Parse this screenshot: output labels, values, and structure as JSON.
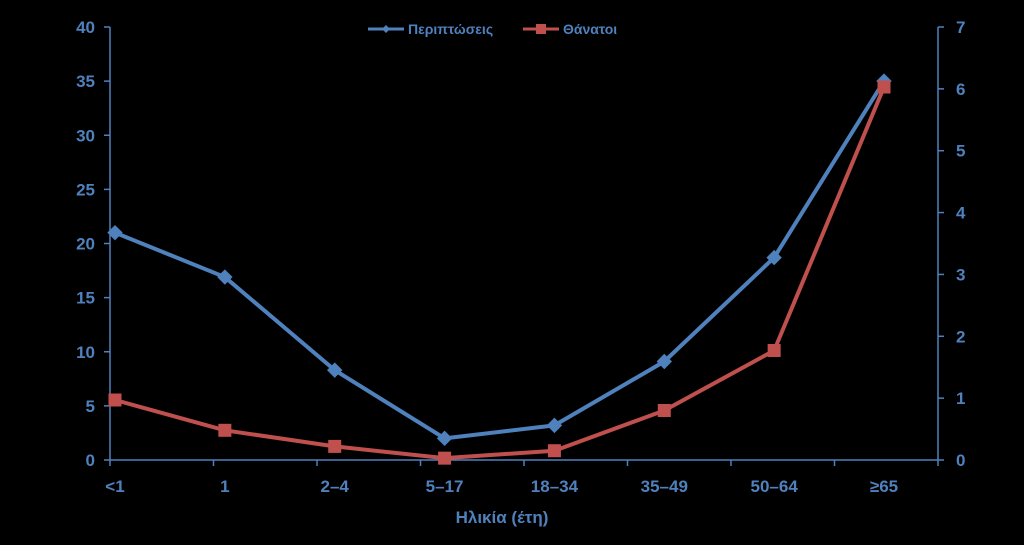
{
  "chart_data": {
    "type": "line",
    "title": "",
    "xlabel": "Ηλικία (έτη)",
    "ylabel": "",
    "y2label": "",
    "categories": [
      "<1",
      "1",
      "2–4",
      "5–17",
      "18–34",
      "35–49",
      "50–64",
      "≥65"
    ],
    "ylim": [
      0,
      40
    ],
    "yticks": [
      0,
      5,
      10,
      15,
      20,
      25,
      30,
      35,
      40
    ],
    "y2lim": [
      0,
      7
    ],
    "y2ticks": [
      0,
      1,
      2,
      3,
      4,
      5,
      6,
      7
    ],
    "grid": false,
    "legend_position": "top-center",
    "series": [
      {
        "name": "Περιπτώσεις",
        "axis": "left",
        "color": "#4f81bd",
        "marker": "diamond",
        "values": [
          21,
          16.9,
          8.3,
          2.0,
          3.2,
          9.1,
          18.7,
          35.0
        ]
      },
      {
        "name": "Θάνατοι",
        "axis": "right",
        "color": "#c0504d",
        "marker": "square",
        "values": [
          0.97,
          0.48,
          0.22,
          0.03,
          0.15,
          0.8,
          1.77,
          6.03
        ]
      }
    ]
  }
}
